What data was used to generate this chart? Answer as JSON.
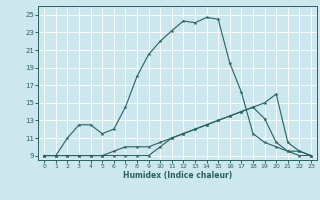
{
  "xlabel": "Humidex (Indice chaleur)",
  "ylabel": "",
  "xlim": [
    -0.5,
    23.5
  ],
  "ylim": [
    8.5,
    26
  ],
  "xticks": [
    0,
    1,
    2,
    3,
    4,
    5,
    6,
    7,
    8,
    9,
    10,
    11,
    12,
    13,
    14,
    15,
    16,
    17,
    18,
    19,
    20,
    21,
    22,
    23
  ],
  "yticks": [
    9,
    11,
    13,
    15,
    17,
    19,
    21,
    23,
    25
  ],
  "bg_color": "#cce8ee",
  "line_color": "#2a6060",
  "grid_color": "#ffffff",
  "line1": {
    "x": [
      0,
      1,
      2,
      3,
      4,
      5,
      6,
      7,
      8,
      9,
      10,
      11,
      12,
      13,
      14,
      15,
      16,
      17,
      18,
      19,
      20,
      21,
      22,
      23
    ],
    "y": [
      9,
      9,
      11,
      12.5,
      12.5,
      11.5,
      12,
      14.5,
      18,
      20.5,
      22,
      23.2,
      24.3,
      24.1,
      24.7,
      24.5,
      19.5,
      16.2,
      11.5,
      10.5,
      10,
      9.5,
      9,
      9
    ]
  },
  "line2": {
    "x": [
      0,
      1,
      2,
      3,
      4,
      5,
      6,
      7,
      8,
      9,
      10,
      11,
      12,
      13,
      14,
      15,
      16,
      17,
      18,
      19,
      20,
      21,
      22,
      23
    ],
    "y": [
      9,
      9,
      9,
      9,
      9,
      9,
      9.5,
      10,
      10,
      10,
      10.5,
      11,
      11.5,
      12,
      12.5,
      13,
      13.5,
      14,
      14.5,
      15,
      16,
      10.5,
      9.5,
      9
    ]
  },
  "line3": {
    "x": [
      0,
      1,
      2,
      3,
      4,
      5,
      6,
      7,
      8,
      9,
      10,
      11,
      12,
      13,
      14,
      15,
      16,
      17,
      18,
      19,
      20,
      21,
      22,
      23
    ],
    "y": [
      9,
      9,
      9,
      9,
      9,
      9,
      9,
      9,
      9,
      9,
      10,
      11,
      11.5,
      12,
      12.5,
      13,
      13.5,
      14,
      14.5,
      13.2,
      10.5,
      9.5,
      9.5,
      9
    ]
  }
}
